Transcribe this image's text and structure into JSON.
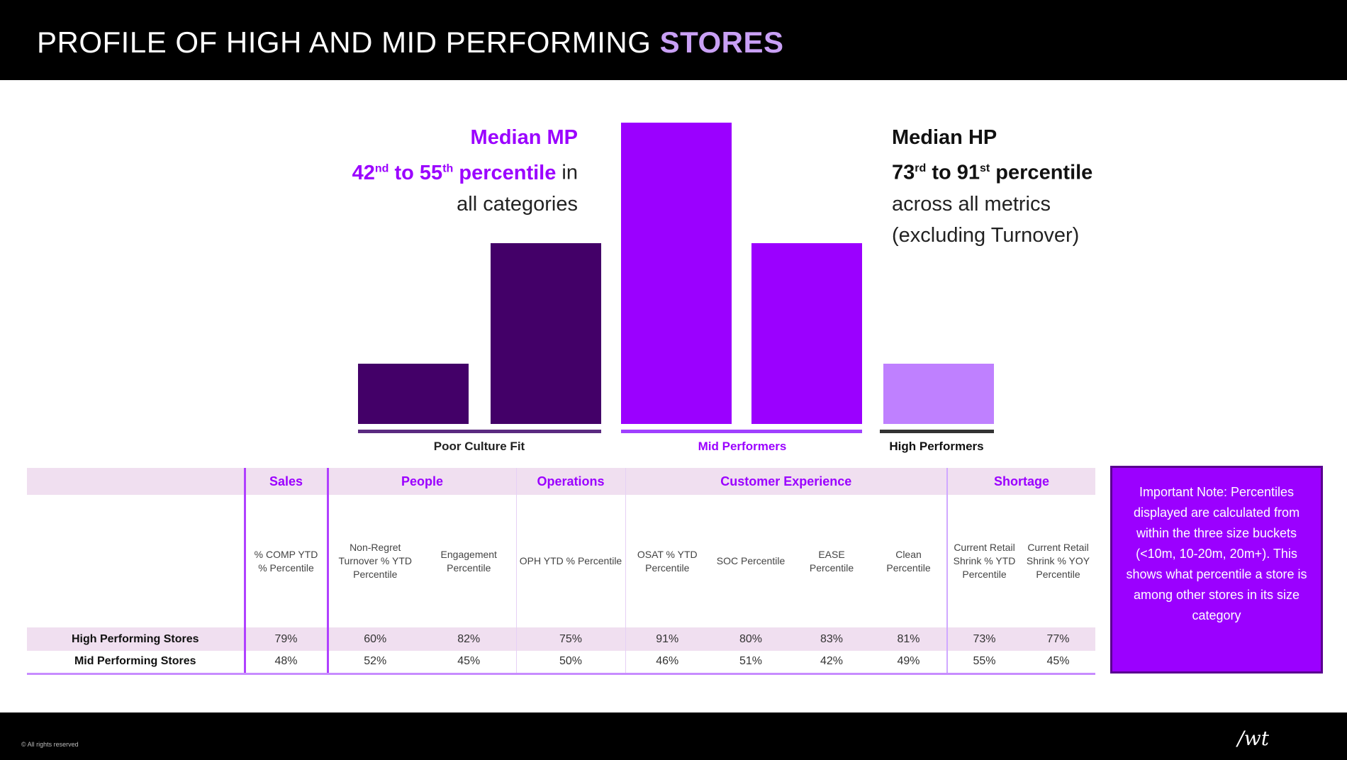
{
  "title": {
    "main": "PROFILE OF HIGH AND MID PERFORMING",
    "accent": "STORES"
  },
  "callouts": {
    "mp": {
      "line1": "Median MP",
      "line2_a": "42",
      "line2_sup1": "nd",
      "line2_b": " to 55",
      "line2_sup2": "th",
      "line2_c": " percentile",
      "line2_d": " in",
      "line3": "all categories"
    },
    "hp": {
      "line1": "Median HP",
      "line2_a": "73",
      "line2_sup1": "rd",
      "line2_b": " to 91",
      "line2_sup2": "st",
      "line2_c": " percentile",
      "line3": "across all metrics",
      "line4": "(excluding Turnover)"
    }
  },
  "chart_data": {
    "type": "bar",
    "title": "",
    "categories": [
      "Poor Culture Fit 1",
      "Poor Culture Fit 2",
      "Mid Performers 1",
      "Mid Performers 2",
      "High Performers"
    ],
    "values": [
      1,
      3,
      5,
      3,
      1
    ],
    "groups": [
      {
        "label": "Poor Culture Fit",
        "bars": [
          0,
          1
        ],
        "color": "#430068",
        "line_color": "#5a2a80"
      },
      {
        "label": "Mid Performers",
        "bars": [
          2,
          3
        ],
        "color": "#9b00ff",
        "line_color": "#a040ff"
      },
      {
        "label": "High Performers",
        "bars": [
          4
        ],
        "color": "#bf80ff",
        "line_color": "#333333"
      }
    ],
    "xlabel": "",
    "ylabel": "",
    "ylim": [
      0,
      5
    ],
    "grid": false
  },
  "table": {
    "categories": [
      "Sales",
      "People",
      "Operations",
      "Customer Experience",
      "Shortage"
    ],
    "columns": [
      "% COMP YTD % Percentile",
      "Non-Regret Turnover % YTD Percentile",
      "Engagement Percentile",
      "OPH YTD % Percentile",
      "OSAT % YTD Percentile",
      "SOC Percentile",
      "EASE Percentile",
      "Clean Percentile",
      "Current Retail Shrink % YTD Percentile",
      "Current Retail Shrink % YOY Percentile"
    ],
    "rows": [
      {
        "label": "High Performing Stores",
        "values": [
          "79%",
          "60%",
          "82%",
          "75%",
          "91%",
          "80%",
          "83%",
          "81%",
          "73%",
          "77%"
        ]
      },
      {
        "label": "Mid Performing Stores",
        "values": [
          "48%",
          "52%",
          "45%",
          "50%",
          "46%",
          "51%",
          "42%",
          "49%",
          "55%",
          "45%"
        ]
      }
    ]
  },
  "note": "Important Note: Percentiles displayed are calculated from within the three size buckets (<10m, 10-20m, 20m+). This shows what percentile a store is among other stores in its size category",
  "footer": {
    "copyright": "© All rights reserved",
    "logo": "/wt"
  }
}
